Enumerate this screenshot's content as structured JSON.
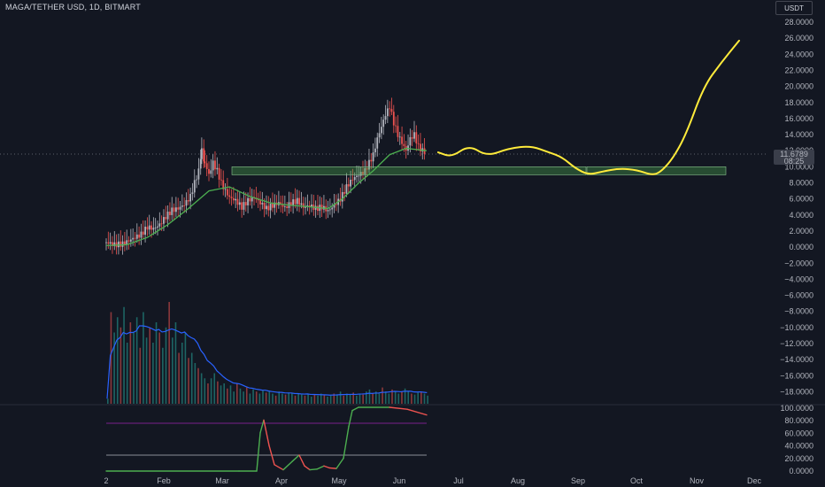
{
  "header": {
    "title": "MAGA/TETHER USD, 1D, BITMART",
    "currency_button": "USDT"
  },
  "price_tag": {
    "price": "11.6789",
    "countdown": "08:25",
    "color": "#3a3e4a"
  },
  "colors": {
    "up": "#b2b5be",
    "down": "#ef5350",
    "ema": "#4caf50",
    "volume_ma": "#2962ff",
    "zone": "#4caf50",
    "projection": "#ffeb3b",
    "oscillator_up": "#4caf50",
    "oscillator_down": "#ef5350",
    "band_upper": "#9c27b0",
    "band_lower": "#b2b5be"
  },
  "chart_data": [
    {
      "type": "candlestick",
      "title": "MAGA/TETHER USD, 1D, BITMART",
      "y_ticks": [
        "28.0000",
        "26.0000",
        "24.0000",
        "22.0000",
        "20.0000",
        "18.0000",
        "16.0000",
        "14.0000",
        "12.0000",
        "10.0000",
        "8.0000",
        "6.0000",
        "4.0000",
        "2.0000",
        "0.0000",
        "−2.0000",
        "−4.0000",
        "−6.0000",
        "−8.0000",
        "−10.0000",
        "−12.0000",
        "−14.0000",
        "−16.0000",
        "−18.0000"
      ],
      "x_ticks": [
        "2",
        "Feb",
        "Mar",
        "Apr",
        "May",
        "Jun",
        "Jul",
        "Aug",
        "Sep",
        "Oct",
        "Nov",
        "Dec"
      ],
      "ylim": [
        -18,
        28
      ],
      "last_price": 11.6789,
      "close_path": [
        [
          0,
          0.6
        ],
        [
          8,
          0.3
        ],
        [
          16,
          0.4
        ],
        [
          22,
          0.8
        ],
        [
          28,
          1.2
        ],
        [
          34,
          1.6
        ],
        [
          40,
          2.5
        ],
        [
          46,
          2.3
        ],
        [
          52,
          2.8
        ],
        [
          58,
          3.8
        ],
        [
          64,
          4.6
        ],
        [
          70,
          4.8
        ],
        [
          76,
          5.3
        ],
        [
          82,
          6.3
        ],
        [
          86,
          8.0
        ],
        [
          90,
          9.5
        ],
        [
          93,
          12.0
        ],
        [
          96,
          10.5
        ],
        [
          100,
          9.0
        ],
        [
          104,
          10.5
        ],
        [
          108,
          9.5
        ],
        [
          112,
          8.0
        ],
        [
          116,
          7.0
        ],
        [
          120,
          6.2
        ],
        [
          126,
          5.8
        ],
        [
          132,
          5.0
        ],
        [
          138,
          5.8
        ],
        [
          144,
          6.2
        ],
        [
          150,
          5.5
        ],
        [
          156,
          4.8
        ],
        [
          162,
          5.2
        ],
        [
          168,
          5.5
        ],
        [
          174,
          4.9
        ],
        [
          180,
          5.5
        ],
        [
          186,
          5.8
        ],
        [
          192,
          5.0
        ],
        [
          198,
          5.2
        ],
        [
          204,
          4.8
        ],
        [
          210,
          5.0
        ],
        [
          216,
          4.5
        ],
        [
          222,
          5.2
        ],
        [
          228,
          6.0
        ],
        [
          234,
          7.5
        ],
        [
          240,
          8.5
        ],
        [
          246,
          9.0
        ],
        [
          252,
          9.5
        ],
        [
          256,
          10.5
        ],
        [
          260,
          11.5
        ],
        [
          264,
          13.5
        ],
        [
          268,
          15.0
        ],
        [
          272,
          16.5
        ],
        [
          276,
          17.5
        ],
        [
          280,
          15.5
        ],
        [
          284,
          14.0
        ],
        [
          288,
          13.0
        ],
        [
          292,
          12.0
        ],
        [
          296,
          13.5
        ],
        [
          300,
          14.0
        ],
        [
          304,
          12.5
        ],
        [
          308,
          12.0
        ],
        [
          312,
          11.7
        ]
      ],
      "ema_path": [
        [
          0,
          0.2
        ],
        [
          20,
          0.3
        ],
        [
          40,
          1.2
        ],
        [
          60,
          2.8
        ],
        [
          80,
          4.8
        ],
        [
          100,
          7.0
        ],
        [
          120,
          7.5
        ],
        [
          140,
          6.3
        ],
        [
          160,
          5.5
        ],
        [
          180,
          5.2
        ],
        [
          200,
          5.0
        ],
        [
          216,
          4.8
        ],
        [
          230,
          6.0
        ],
        [
          246,
          8.0
        ],
        [
          260,
          9.5
        ],
        [
          276,
          11.5
        ],
        [
          292,
          12.3
        ],
        [
          312,
          12.0
        ]
      ],
      "support_zone": {
        "low": 9.0,
        "high": 10.0
      },
      "projection_zone": {
        "low": 9.0,
        "high": 10.0
      },
      "projection_path": [
        [
          0,
          11.8
        ],
        [
          15,
          11.2
        ],
        [
          35,
          12.7
        ],
        [
          55,
          11.3
        ],
        [
          80,
          12.3
        ],
        [
          105,
          12.6
        ],
        [
          125,
          11.8
        ],
        [
          140,
          11.2
        ],
        [
          155,
          9.8
        ],
        [
          170,
          9.0
        ],
        [
          185,
          9.4
        ],
        [
          205,
          9.8
        ],
        [
          225,
          9.6
        ],
        [
          240,
          9.0
        ],
        [
          250,
          9.2
        ],
        [
          265,
          11.0
        ],
        [
          280,
          14.0
        ],
        [
          300,
          20.0
        ],
        [
          320,
          23.0
        ],
        [
          340,
          25.7
        ]
      ]
    },
    {
      "type": "bar",
      "title": "",
      "volume_heights": [
        0.05,
        0.9,
        0.7,
        0.85,
        0.75,
        0.95,
        0.6,
        0.8,
        0.7,
        0.85,
        0.55,
        0.9,
        0.65,
        0.75,
        0.6,
        0.8,
        0.7,
        0.55,
        0.75,
        1.0,
        0.65,
        0.8,
        0.5,
        0.6,
        0.7,
        0.45,
        0.5,
        0.4,
        0.35,
        0.3,
        0.25,
        0.2,
        0.25,
        0.3,
        0.22,
        0.18,
        0.2,
        0.15,
        0.18,
        0.12,
        0.2,
        0.15,
        0.12,
        0.16,
        0.1,
        0.14,
        0.12,
        0.1,
        0.13,
        0.11,
        0.12,
        0.1,
        0.08,
        0.12,
        0.1,
        0.09,
        0.11,
        0.1,
        0.08,
        0.1,
        0.09,
        0.08,
        0.1,
        0.07,
        0.09,
        0.08,
        0.1,
        0.09,
        0.07,
        0.08,
        0.1,
        0.09,
        0.12,
        0.08,
        0.1,
        0.09,
        0.11,
        0.08,
        0.1,
        0.09,
        0.12,
        0.14,
        0.1,
        0.12,
        0.1,
        0.16,
        0.12,
        0.1,
        0.14,
        0.12,
        0.1,
        0.12,
        0.15,
        0.12,
        0.1,
        0.09,
        0.11,
        0.12,
        0.1,
        0.08
      ]
    },
    {
      "type": "line",
      "title": "",
      "y_ticks": [
        "100.0000",
        "80.0000",
        "60.0000",
        "40.0000",
        "20.0000",
        "0.0000"
      ],
      "ylim": [
        0,
        100
      ],
      "upper_band": 75,
      "lower_band": 25,
      "values": [
        [
          0,
          0
        ],
        [
          150,
          0
        ],
        [
          170,
          0
        ],
        [
          174,
          60
        ],
        [
          178,
          80
        ],
        [
          184,
          40
        ],
        [
          190,
          10
        ],
        [
          200,
          2
        ],
        [
          210,
          15
        ],
        [
          218,
          25
        ],
        [
          224,
          8
        ],
        [
          230,
          2
        ],
        [
          238,
          3
        ],
        [
          246,
          8
        ],
        [
          252,
          5
        ],
        [
          260,
          4
        ],
        [
          268,
          20
        ],
        [
          274,
          70
        ],
        [
          278,
          95
        ],
        [
          285,
          100
        ],
        [
          320,
          100
        ],
        [
          340,
          97
        ],
        [
          362,
          88
        ]
      ]
    }
  ]
}
